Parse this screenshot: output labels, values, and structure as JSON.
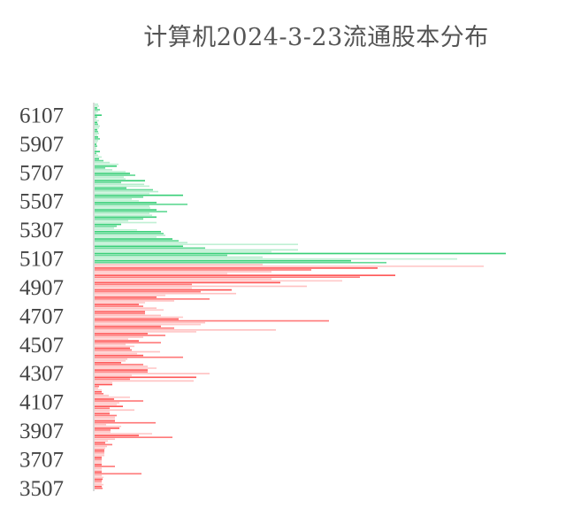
{
  "chart_data": {
    "type": "bar",
    "orientation": "horizontal",
    "title": "计算机2024-3-23流通股本分布",
    "xlabel": "",
    "ylabel": "",
    "y_ticks": [
      "6107",
      "5907",
      "5707",
      "5507",
      "5307",
      "5107",
      "4907",
      "4707",
      "4507",
      "4307",
      "4107",
      "3907",
      "3707",
      "3507"
    ],
    "ylim": [
      3500,
      6190
    ],
    "x_axis_labels_shown": false,
    "grid": false,
    "legend": "none",
    "series": [
      {
        "color": "#2ecc71",
        "values": [
          4,
          5,
          3,
          6,
          4,
          2,
          8,
          3,
          2,
          5,
          3,
          4,
          6,
          5,
          3,
          4,
          5,
          3,
          4,
          6,
          4,
          3,
          2,
          3,
          2,
          2,
          6,
          2,
          4,
          8,
          5,
          10,
          17,
          27,
          25,
          12,
          20,
          35,
          40,
          46,
          33,
          35,
          57,
          30,
          56,
          62,
          36,
          66,
          72,
          62,
          100,
          55,
          42,
          50,
          70,
          105,
          62,
          63,
          70,
          82,
          62,
          65,
          70,
          55,
          38,
          70,
          30,
          25,
          22,
          48,
          75,
          78,
          80,
          70,
          88,
          95,
          105,
          230,
          100,
          125,
          230,
          200,
          465,
          150,
          190,
          410,
          290,
          330
        ]
      },
      {
        "color": "#ff4d4d",
        "values": [
          190,
          440,
          320,
          245,
          200,
          150,
          340,
          300,
          200,
          280,
          210,
          110,
          240,
          110,
          155,
          120,
          160,
          80,
          70,
          130,
          90,
          57,
          50,
          55,
          70,
          78,
          57,
          57,
          75,
          100,
          95,
          265,
          125,
          120,
          75,
          90,
          205,
          115,
          60,
          80,
          55,
          38,
          50,
          75,
          35,
          45,
          40,
          42,
          74,
          48,
          55,
          100,
          37,
          35,
          30,
          55,
          60,
          70,
          60,
          60,
          130,
          42,
          115,
          40,
          112,
          20,
          20,
          5,
          4,
          8,
          8,
          10,
          16,
          40,
          22,
          55,
          28,
          25,
          32,
          17,
          45,
          17,
          17,
          25,
          23,
          23,
          23,
          69,
          13,
          30,
          28,
          18,
          18,
          65,
          50,
          88,
          23,
          15,
          12,
          20,
          14,
          12,
          11,
          11,
          11,
          11,
          8,
          8,
          8,
          8,
          8,
          23,
          8,
          8,
          8,
          53,
          8,
          10,
          9,
          8,
          8,
          10,
          8,
          9
        ]
      }
    ]
  }
}
